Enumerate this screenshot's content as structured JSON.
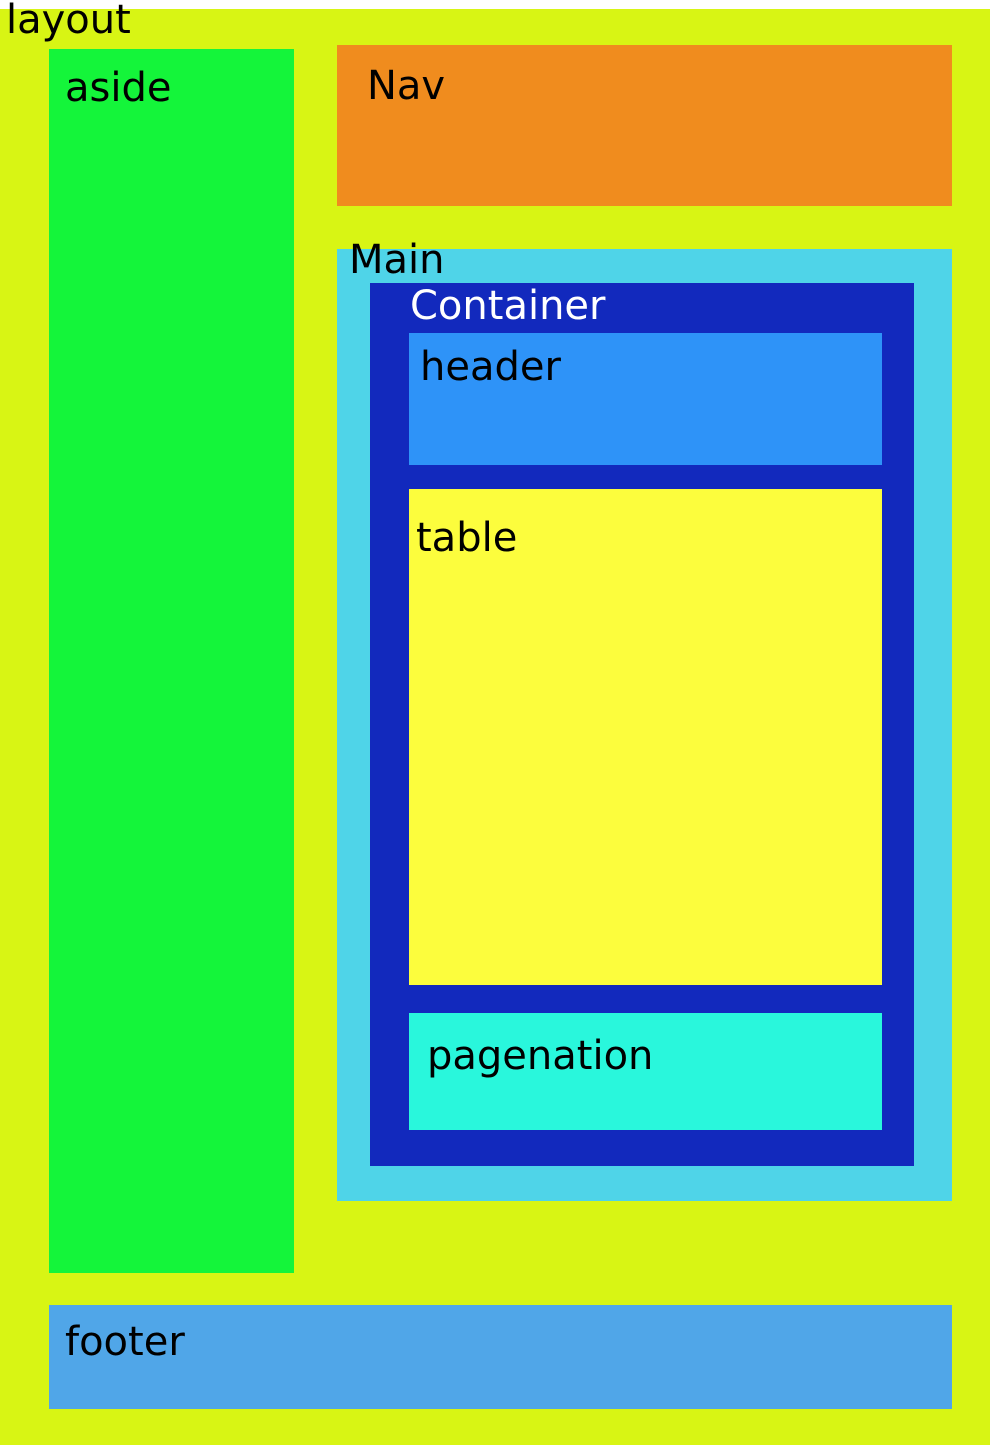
{
  "layout": {
    "label": "layout",
    "color": "#d8f514"
  },
  "aside": {
    "label": "aside",
    "color": "#14f53a"
  },
  "nav": {
    "label": "Nav",
    "color": "#f08c1e"
  },
  "main": {
    "label": "Main",
    "color": "#4fd4e8"
  },
  "container": {
    "label": "Container",
    "color": "#1229bd",
    "label_color": "#ffffff"
  },
  "header": {
    "label": "header",
    "color": "#2e93f8"
  },
  "table": {
    "label": "table",
    "color": "#fcfd3d"
  },
  "pagination": {
    "label": "pagenation",
    "color": "#29f7dc"
  },
  "footer": {
    "label": "footer",
    "color": "#50a6e8"
  }
}
